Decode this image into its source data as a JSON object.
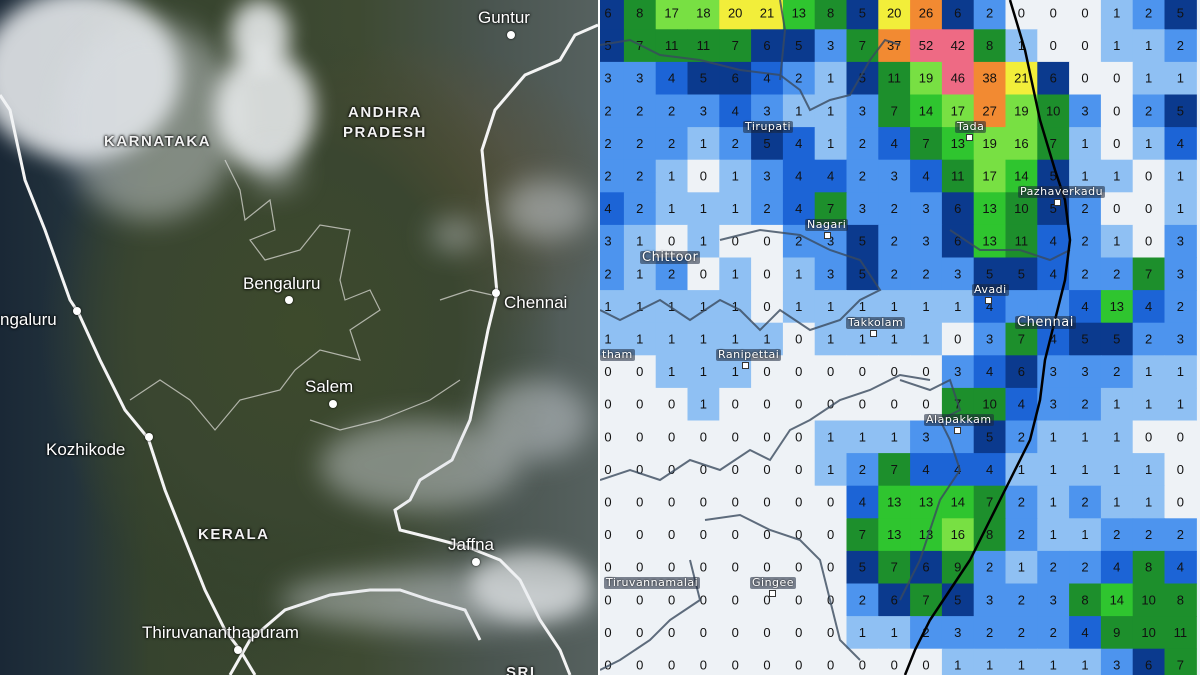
{
  "satellite_panel": {
    "labels": {
      "guntur": "Guntur",
      "andhra": "ANDHRA",
      "pradesh": "PRADESH",
      "karnataka": "KARNATAKA",
      "bengaluru": "Bengaluru",
      "chennai": "Chennai",
      "mangaluru": "ngaluru",
      "salem": "Salem",
      "kozhikode": "Kozhikode",
      "kerala": "KERALA",
      "jaffna": "Jaffna",
      "thiruvananthapuram": "Thiruvananthapuram",
      "sri": "SRI"
    }
  },
  "rainfall_panel": {
    "towns": {
      "tirupati": "Tirupati",
      "tada": "Tada",
      "pazhaverkadu": "Pazhaverkadu",
      "nagari": "Nagari",
      "chittoor": "Chittoor",
      "avadi": "Avadi",
      "chennai": "Chennai",
      "takkolam": "Takkolam",
      "vellore_partial": "tham",
      "ranipettai": "Ranipettai",
      "alapakkam": "Alapakkam",
      "gingee": "Gingee",
      "tiruvannamalai": "Tiruvannamalai"
    },
    "color_scale": [
      {
        "min": 0,
        "color": "#eef2f6"
      },
      {
        "min": 0.5,
        "color": "#c6dcf7"
      },
      {
        "min": 1,
        "color": "#8fc0f3"
      },
      {
        "min": 2,
        "color": "#4d94ee"
      },
      {
        "min": 4,
        "color": "#1c64d6"
      },
      {
        "min": 5,
        "color": "#0b3a8e"
      },
      {
        "min": 7,
        "color": "#1d8f2c"
      },
      {
        "min": 12,
        "color": "#2fc52f"
      },
      {
        "min": 16,
        "color": "#78e043"
      },
      {
        "min": 20,
        "color": "#f2ee3a"
      },
      {
        "min": 25,
        "color": "#f28a32"
      },
      {
        "min": 40,
        "color": "#ee6a84"
      }
    ],
    "grid": [
      [
        6,
        8,
        17,
        18,
        20,
        21,
        13,
        8,
        5,
        20,
        26,
        6,
        2,
        0,
        0,
        0,
        1,
        2,
        5
      ],
      [
        5,
        7,
        11,
        11,
        7,
        6,
        5,
        3,
        7,
        37,
        52,
        42,
        8,
        1,
        0,
        0,
        1,
        1,
        2
      ],
      [
        3,
        3,
        4,
        5,
        6,
        4,
        2,
        1,
        5,
        11,
        19,
        46,
        38,
        21,
        6,
        0,
        0,
        1,
        1
      ],
      [
        2,
        2,
        2,
        3,
        4,
        3,
        1,
        1,
        3,
        7,
        14,
        17,
        27,
        19,
        10,
        3,
        0,
        2,
        5
      ],
      [
        2,
        2,
        2,
        1,
        2,
        5,
        4,
        1,
        2,
        4,
        7,
        13,
        19,
        16,
        7,
        1,
        0,
        1,
        4
      ],
      [
        2,
        2,
        1,
        0,
        1,
        3,
        4,
        4,
        2,
        3,
        4,
        11,
        17,
        14,
        5,
        1,
        1,
        0,
        1
      ],
      [
        4,
        2,
        1,
        1,
        1,
        2,
        4,
        7,
        3,
        2,
        3,
        6,
        13,
        10,
        5,
        2,
        0,
        0,
        1
      ],
      [
        3,
        1,
        0,
        1,
        0,
        0,
        2,
        3,
        5,
        2,
        3,
        6,
        13,
        11,
        4,
        2,
        1,
        0,
        3
      ],
      [
        2,
        1,
        2,
        0,
        1,
        0,
        1,
        3,
        5,
        2,
        2,
        3,
        5,
        5,
        4,
        2,
        2,
        7,
        3
      ],
      [
        1,
        1,
        1,
        1,
        1,
        0,
        1,
        1,
        1,
        1,
        1,
        1,
        4,
        null,
        null,
        4,
        13,
        4,
        2
      ],
      [
        1,
        1,
        1,
        1,
        1,
        1,
        0,
        1,
        1,
        1,
        1,
        0,
        3,
        7,
        4,
        5,
        5,
        2,
        3
      ],
      [
        0,
        0,
        1,
        1,
        1,
        0,
        0,
        0,
        0,
        0,
        0,
        3,
        4,
        6,
        3,
        3,
        2,
        1,
        1
      ],
      [
        0,
        0,
        0,
        1,
        0,
        0,
        0,
        0,
        0,
        0,
        0,
        7,
        10,
        4,
        3,
        2,
        1,
        1,
        1
      ],
      [
        0,
        0,
        0,
        0,
        0,
        0,
        0,
        1,
        1,
        1,
        3,
        null,
        5,
        2,
        1,
        1,
        1,
        0,
        0
      ],
      [
        0,
        0,
        0,
        0,
        0,
        0,
        0,
        1,
        2,
        7,
        4,
        4,
        4,
        1,
        1,
        1,
        1,
        1,
        0
      ],
      [
        0,
        0,
        0,
        0,
        0,
        0,
        0,
        0,
        4,
        13,
        13,
        14,
        7,
        2,
        1,
        2,
        1,
        1,
        0
      ],
      [
        0,
        0,
        0,
        0,
        0,
        0,
        0,
        0,
        7,
        13,
        13,
        16,
        8,
        2,
        1,
        1,
        2,
        2,
        2
      ],
      [
        0,
        0,
        0,
        0,
        0,
        0,
        0,
        0,
        5,
        7,
        6,
        9,
        2,
        1,
        2,
        2,
        4,
        8,
        4
      ],
      [
        0,
        0,
        0,
        0,
        0,
        0,
        0,
        0,
        2,
        6,
        7,
        5,
        3,
        2,
        3,
        8,
        14,
        10,
        8
      ],
      [
        0,
        0,
        0,
        0,
        0,
        0,
        0,
        0,
        1,
        1,
        2,
        3,
        2,
        2,
        2,
        4,
        9,
        10,
        11
      ],
      [
        0,
        0,
        0,
        0,
        0,
        0,
        0,
        0,
        0,
        0,
        0,
        1,
        1,
        1,
        1,
        1,
        3,
        6,
        7
      ]
    ]
  }
}
